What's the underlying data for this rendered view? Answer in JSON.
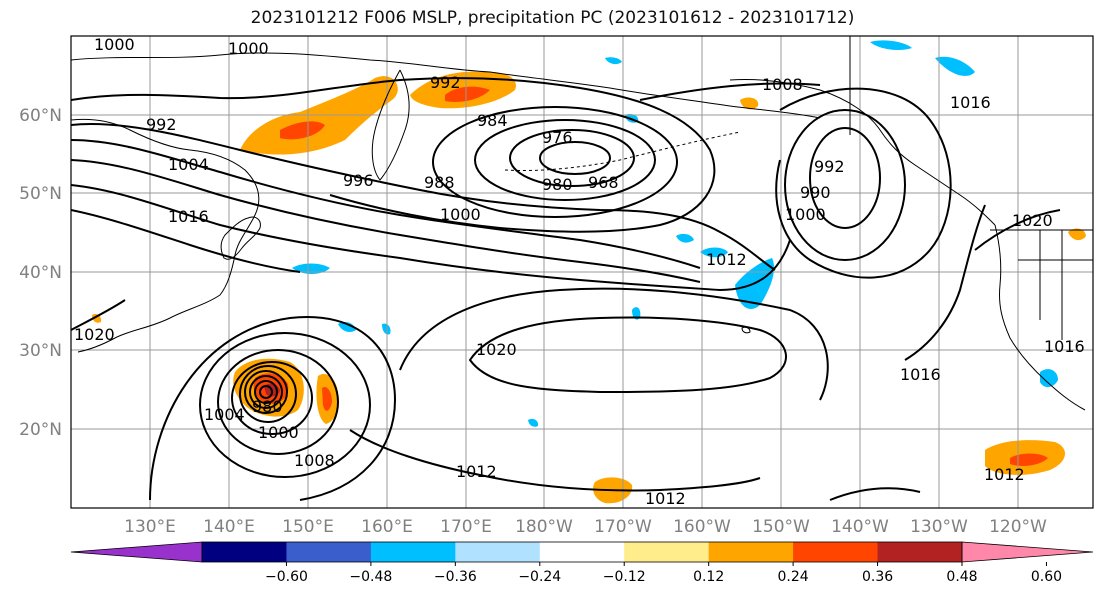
{
  "title": "2023101212 F006 MSLP, precipitation PC (2023101612 - 2023101712)",
  "map": {
    "lat_labels": [
      "60°N",
      "50°N",
      "40°N",
      "30°N",
      "20°N"
    ],
    "lon_labels": [
      "130°E",
      "140°E",
      "150°E",
      "160°E",
      "170°E",
      "180°W",
      "170°W",
      "160°W",
      "150°W",
      "140°W",
      "130°W",
      "120°W"
    ],
    "isobar_labels": [
      "1000",
      "1000",
      "992",
      "992",
      "984",
      "976",
      "968",
      "980",
      "996",
      "988",
      "1004",
      "1016",
      "1000",
      "1008",
      "992",
      "1016",
      "1000",
      "990",
      "1012",
      "1020",
      "1020",
      "1004",
      "1008",
      "1012",
      "1012",
      "1016",
      "1016",
      "1012",
      "980",
      "1000",
      "1020"
    ],
    "colors": {
      "land_outline": "#000000",
      "isobar": "#000000",
      "grid": "#999999"
    }
  },
  "colorbar": {
    "bins": [
      "#9932CC",
      "#000080",
      "#3A5FCD",
      "#00BFFF",
      "#B0E2FF",
      "#FFFFFF",
      "#FFEC8B",
      "#FFA500",
      "#FF4500",
      "#B22222",
      "#FF88AA"
    ],
    "tick_labels": [
      "−0.60",
      "−0.48",
      "−0.36",
      "−0.24",
      "−0.12",
      "0.12",
      "0.24",
      "0.36",
      "0.48",
      "0.60"
    ]
  }
}
